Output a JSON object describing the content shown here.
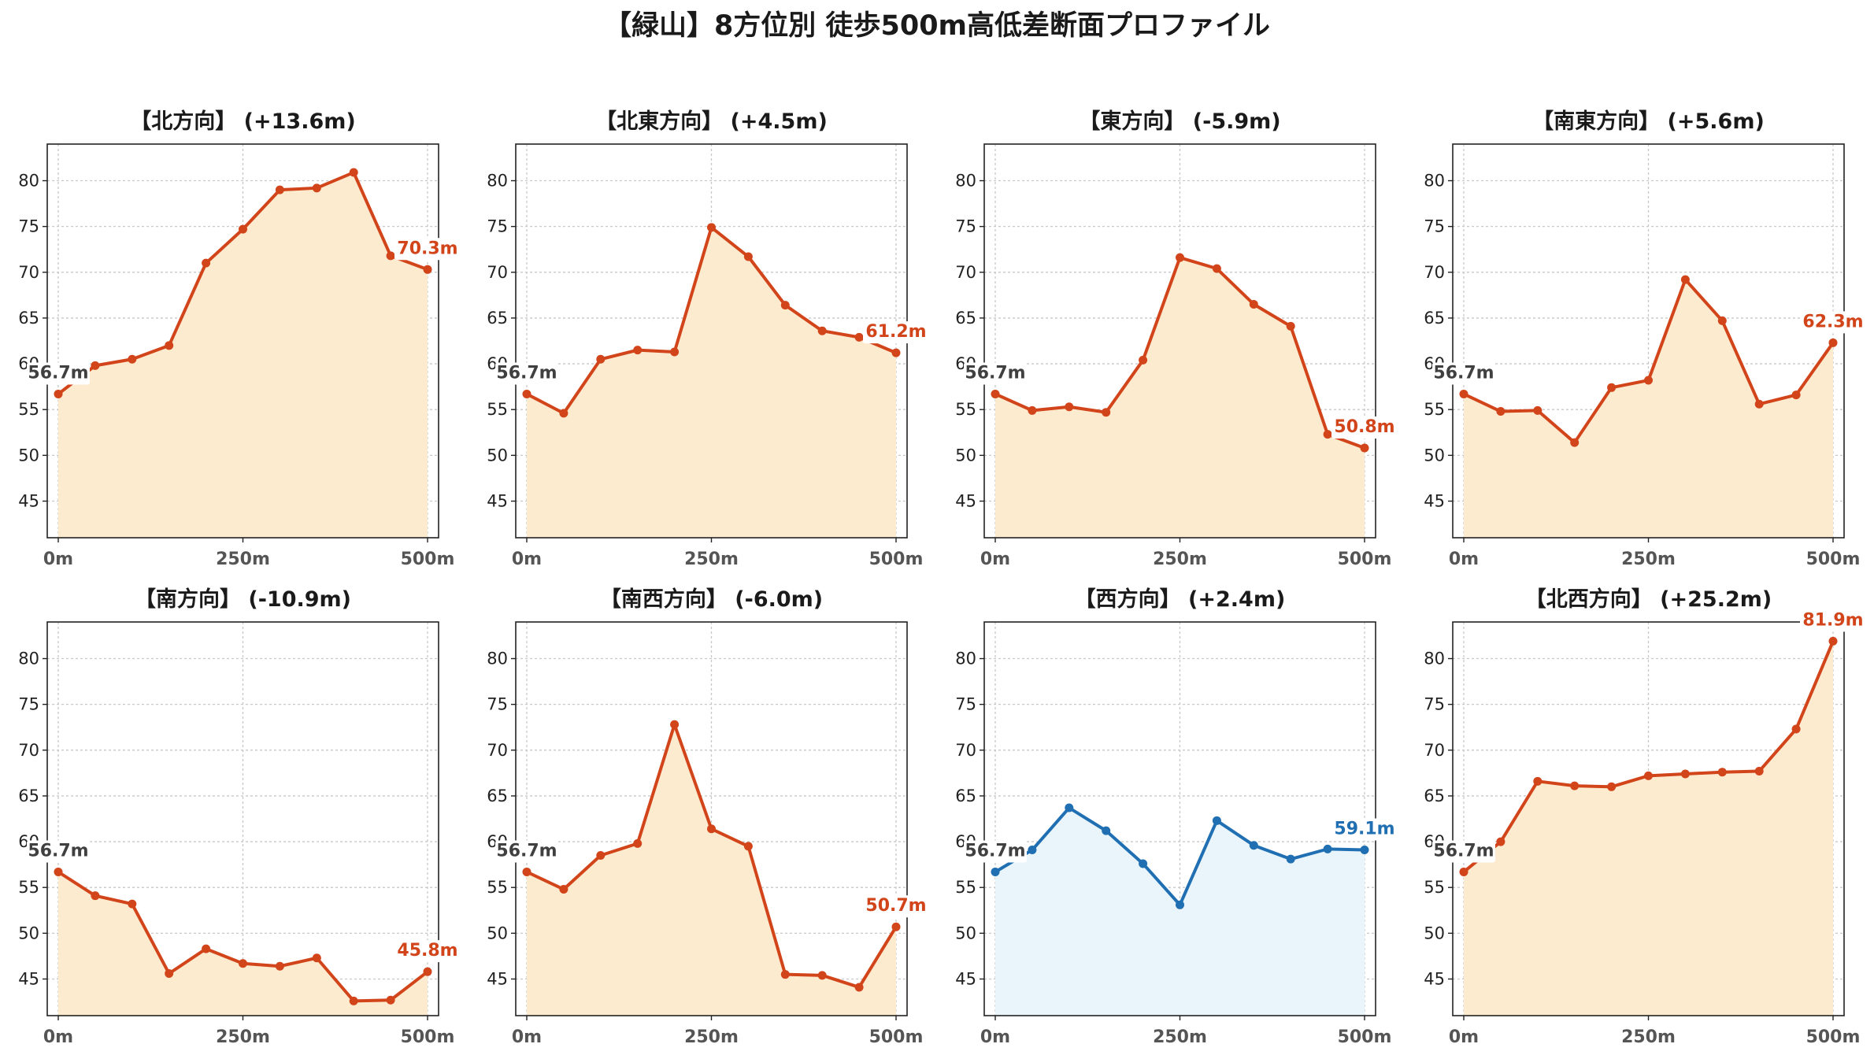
{
  "figure": {
    "suptitle": "【緑山】8方位別 徒歩500m高低差断面プロファイル"
  },
  "chart_data": [
    {
      "type": "area",
      "title": "【北方向】 (+13.6m)",
      "x": [
        0,
        50,
        100,
        150,
        200,
        250,
        300,
        350,
        400,
        450,
        500
      ],
      "x_ticks": [
        "0m",
        "250m",
        "500m"
      ],
      "x_tick_values": [
        0,
        250,
        500
      ],
      "y_ticks": [
        45,
        50,
        55,
        60,
        65,
        70,
        75,
        80
      ],
      "ylim": [
        41,
        84
      ],
      "grid": true,
      "color": "#d2441a",
      "fill": "#fdebd0",
      "values": [
        56.7,
        59.8,
        60.5,
        62.0,
        71.0,
        74.7,
        79.0,
        79.2,
        80.9,
        71.8,
        70.3
      ],
      "start_label": "56.7m",
      "end_label": "70.3m"
    },
    {
      "type": "area",
      "title": "【北東方向】 (+4.5m)",
      "x": [
        0,
        50,
        100,
        150,
        200,
        250,
        300,
        350,
        400,
        450,
        500
      ],
      "x_ticks": [
        "0m",
        "250m",
        "500m"
      ],
      "x_tick_values": [
        0,
        250,
        500
      ],
      "y_ticks": [
        45,
        50,
        55,
        60,
        65,
        70,
        75,
        80
      ],
      "ylim": [
        41,
        84
      ],
      "grid": true,
      "color": "#d2441a",
      "fill": "#fdebd0",
      "values": [
        56.7,
        54.6,
        60.5,
        61.5,
        61.3,
        74.9,
        71.7,
        66.4,
        63.6,
        62.9,
        61.2
      ],
      "start_label": "56.7m",
      "end_label": "61.2m"
    },
    {
      "type": "area",
      "title": "【東方向】 (-5.9m)",
      "x": [
        0,
        50,
        100,
        150,
        200,
        250,
        300,
        350,
        400,
        450,
        500
      ],
      "x_ticks": [
        "0m",
        "250m",
        "500m"
      ],
      "x_tick_values": [
        0,
        250,
        500
      ],
      "y_ticks": [
        45,
        50,
        55,
        60,
        65,
        70,
        75,
        80
      ],
      "ylim": [
        41,
        84
      ],
      "grid": true,
      "color": "#d2441a",
      "fill": "#fdebd0",
      "values": [
        56.7,
        54.9,
        55.3,
        54.7,
        60.4,
        71.6,
        70.4,
        66.5,
        64.1,
        52.3,
        50.8
      ],
      "start_label": "56.7m",
      "end_label": "50.8m"
    },
    {
      "type": "area",
      "title": "【南東方向】 (+5.6m)",
      "x": [
        0,
        50,
        100,
        150,
        200,
        250,
        300,
        350,
        400,
        450,
        500
      ],
      "x_ticks": [
        "0m",
        "250m",
        "500m"
      ],
      "x_tick_values": [
        0,
        250,
        500
      ],
      "y_ticks": [
        45,
        50,
        55,
        60,
        65,
        70,
        75,
        80
      ],
      "ylim": [
        41,
        84
      ],
      "grid": true,
      "color": "#d2441a",
      "fill": "#fdebd0",
      "values": [
        56.7,
        54.8,
        54.9,
        51.4,
        57.4,
        58.2,
        69.2,
        64.7,
        55.6,
        56.6,
        62.3
      ],
      "start_label": "56.7m",
      "end_label": "62.3m"
    },
    {
      "type": "area",
      "title": "【南方向】 (-10.9m)",
      "x": [
        0,
        50,
        100,
        150,
        200,
        250,
        300,
        350,
        400,
        450,
        500
      ],
      "x_ticks": [
        "0m",
        "250m",
        "500m"
      ],
      "x_tick_values": [
        0,
        250,
        500
      ],
      "y_ticks": [
        45,
        50,
        55,
        60,
        65,
        70,
        75,
        80
      ],
      "ylim": [
        41,
        84
      ],
      "grid": true,
      "color": "#d2441a",
      "fill": "#fdebd0",
      "values": [
        56.7,
        54.1,
        53.2,
        45.6,
        48.3,
        46.7,
        46.4,
        47.3,
        42.6,
        42.7,
        45.8
      ],
      "start_label": "56.7m",
      "end_label": "45.8m"
    },
    {
      "type": "area",
      "title": "【南西方向】 (-6.0m)",
      "x": [
        0,
        50,
        100,
        150,
        200,
        250,
        300,
        350,
        400,
        450,
        500
      ],
      "x_ticks": [
        "0m",
        "250m",
        "500m"
      ],
      "x_tick_values": [
        0,
        250,
        500
      ],
      "y_ticks": [
        45,
        50,
        55,
        60,
        65,
        70,
        75,
        80
      ],
      "ylim": [
        41,
        84
      ],
      "grid": true,
      "color": "#d2441a",
      "fill": "#fdebd0",
      "values": [
        56.7,
        54.8,
        58.5,
        59.8,
        72.8,
        61.4,
        59.5,
        45.5,
        45.4,
        44.1,
        50.7
      ],
      "start_label": "56.7m",
      "end_label": "50.7m"
    },
    {
      "type": "area",
      "title": "【西方向】 (+2.4m)",
      "x": [
        0,
        50,
        100,
        150,
        200,
        250,
        300,
        350,
        400,
        450,
        500
      ],
      "x_ticks": [
        "0m",
        "250m",
        "500m"
      ],
      "x_tick_values": [
        0,
        250,
        500
      ],
      "y_ticks": [
        45,
        50,
        55,
        60,
        65,
        70,
        75,
        80
      ],
      "ylim": [
        41,
        84
      ],
      "grid": true,
      "color": "#1f6fb2",
      "fill": "#e9f5fb",
      "values": [
        56.7,
        59.1,
        63.7,
        61.2,
        57.6,
        53.1,
        62.3,
        59.6,
        58.1,
        59.2,
        59.1
      ],
      "start_label": "56.7m",
      "end_label": "59.1m"
    },
    {
      "type": "area",
      "title": "【北西方向】 (+25.2m)",
      "x": [
        0,
        50,
        100,
        150,
        200,
        250,
        300,
        350,
        400,
        450,
        500
      ],
      "x_ticks": [
        "0m",
        "250m",
        "500m"
      ],
      "x_tick_values": [
        0,
        250,
        500
      ],
      "y_ticks": [
        45,
        50,
        55,
        60,
        65,
        70,
        75,
        80
      ],
      "ylim": [
        41,
        84
      ],
      "grid": true,
      "color": "#d2441a",
      "fill": "#fdebd0",
      "values": [
        56.7,
        60.0,
        66.6,
        66.1,
        66.0,
        67.2,
        67.4,
        67.6,
        67.7,
        72.3,
        81.9
      ],
      "start_label": "56.7m",
      "end_label": "81.9m"
    }
  ]
}
